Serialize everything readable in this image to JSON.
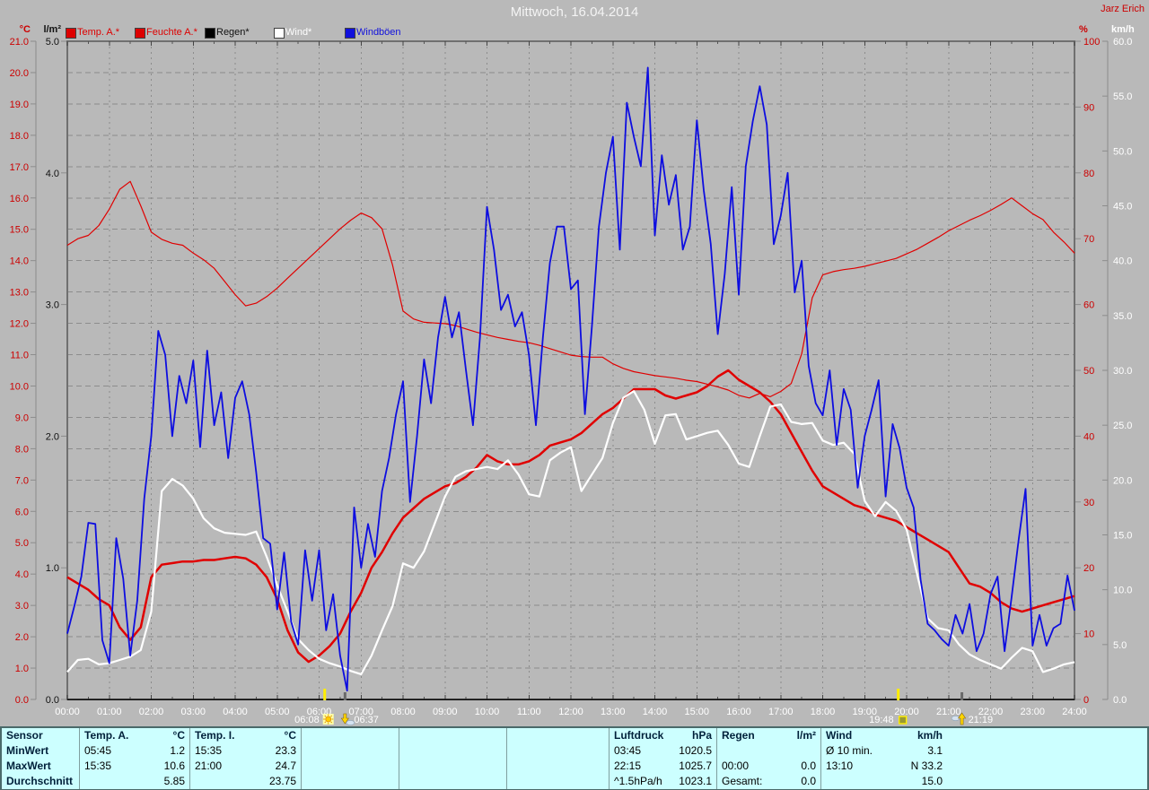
{
  "header": {
    "title": "Mittwoch, 16.04.2014",
    "watermark": "Jarz Erich"
  },
  "axis_units": {
    "temp": "°C",
    "rain": "l/m²",
    "humidity": "%",
    "wind": "km/h"
  },
  "legend": [
    {
      "label": "Temp. A.*",
      "color": "#dd0000"
    },
    {
      "label": "Feuchte A.*",
      "color": "#dd0000"
    },
    {
      "label": "Regen*",
      "color": "#000000"
    },
    {
      "label": "Wind*",
      "color": "#ffffff"
    },
    {
      "label": "Windböen",
      "color": "#1010dd"
    }
  ],
  "table": {
    "row_labels": [
      "Sensor",
      "MinWert",
      "MaxWert",
      "Durchschnitt"
    ],
    "columns": [
      {
        "id": "temp_a",
        "header": "Temp. A.",
        "unit": "°C",
        "rows": [
          [
            "05:45",
            "1.2"
          ],
          [
            "15:35",
            "10.6"
          ],
          [
            "",
            "5.85"
          ]
        ]
      },
      {
        "id": "temp_i",
        "header": "Temp. I.",
        "unit": "°C",
        "rows": [
          [
            "15:35",
            "23.3"
          ],
          [
            "21:00",
            "24.7"
          ],
          [
            "",
            "23.75"
          ]
        ]
      },
      {
        "id": "luftdruck",
        "header": "Luftdruck",
        "unit": "hPa",
        "rows": [
          [
            "03:45",
            "1020.5"
          ],
          [
            "22:15",
            "1025.7"
          ],
          [
            "^1.5hPa/h",
            "1023.1"
          ]
        ]
      },
      {
        "id": "regen",
        "header": "Regen",
        "unit": "l/m²",
        "rows": [
          [
            "",
            ""
          ],
          [
            "00:00",
            "0.0"
          ],
          [
            "Gesamt:",
            "0.0"
          ]
        ]
      },
      {
        "id": "wind",
        "header": "Wind",
        "unit": "km/h",
        "rows": [
          [
            "Ø 10 min.",
            "3.1"
          ],
          [
            "13:10",
            "N 33.2"
          ],
          [
            "",
            "15.0"
          ]
        ]
      }
    ]
  },
  "chart_data": {
    "type": "line",
    "title": "Mittwoch, 16.04.2014",
    "x_axis": {
      "min_hour": 0,
      "max_hour": 24,
      "step_hours": 1,
      "label_format": "HH:00"
    },
    "y_axes": [
      {
        "id": "temp",
        "unit": "°C",
        "min": 0,
        "max": 21,
        "step": 1,
        "side": "left",
        "color": "#cc0000",
        "decimals": 1
      },
      {
        "id": "rain",
        "unit": "l/m²",
        "min": 0,
        "max": 5,
        "step": 1,
        "side": "left",
        "color": "#111111",
        "decimals": 1
      },
      {
        "id": "hum",
        "unit": "%",
        "min": 0,
        "max": 100,
        "step": 10,
        "side": "right",
        "color": "#cc0000",
        "decimals": 0
      },
      {
        "id": "wind",
        "unit": "km/h",
        "min": 0,
        "max": 60,
        "step": 5,
        "side": "right",
        "color": "#ffffff",
        "decimals": 1
      }
    ],
    "grid": {
      "on": true,
      "color": "#8c8c8c"
    },
    "legend_position": "top",
    "series": [
      {
        "name": "Feuchte A.*",
        "axis": "hum",
        "color": "#e00000",
        "width": 1.2,
        "interval_min": 15,
        "values": [
          69,
          70,
          70.5,
          72,
          74.5,
          77.5,
          78.7,
          75,
          71,
          69.9,
          69.3,
          69,
          67.8,
          66.8,
          65.5,
          63.5,
          61.5,
          59.8,
          60.2,
          61.2,
          62.5,
          64,
          65.5,
          67,
          68.5,
          70,
          71.5,
          72.8,
          73.9,
          73.2,
          71.5,
          66,
          59,
          57.8,
          57.3,
          57.2,
          57.1,
          56.8,
          56.3,
          55.8,
          55.4,
          55,
          54.7,
          54.4,
          54.2,
          53.8,
          53.3,
          52.8,
          52.3,
          52.1,
          52,
          52,
          51,
          50.3,
          49.8,
          49.5,
          49.2,
          49,
          48.8,
          48.5,
          48.3,
          47.9,
          47.5,
          47,
          46.2,
          45.8,
          46.5,
          46,
          46.8,
          48,
          52.5,
          61,
          64.5,
          65,
          65.3,
          65.5,
          65.8,
          66.2,
          66.6,
          67,
          67.7,
          68.4,
          69.3,
          70.2,
          71.2,
          72,
          72.8,
          73.5,
          74.3,
          75.2,
          76.2,
          75,
          73.8,
          72.9,
          71,
          69.5,
          67.8
        ]
      },
      {
        "name": "Temp. A.*",
        "axis": "temp",
        "color": "#e00000",
        "width": 2.5,
        "interval_min": 15,
        "values": [
          3.9,
          3.7,
          3.5,
          3.2,
          3.0,
          2.3,
          1.9,
          2.3,
          3.9,
          4.3,
          4.35,
          4.4,
          4.4,
          4.45,
          4.45,
          4.5,
          4.55,
          4.5,
          4.3,
          3.9,
          3.2,
          2.2,
          1.5,
          1.2,
          1.4,
          1.7,
          2.1,
          2.8,
          3.4,
          4.2,
          4.7,
          5.3,
          5.8,
          6.1,
          6.4,
          6.6,
          6.8,
          6.9,
          7.1,
          7.4,
          7.8,
          7.6,
          7.5,
          7.5,
          7.6,
          7.8,
          8.1,
          8.2,
          8.3,
          8.5,
          8.8,
          9.1,
          9.3,
          9.6,
          9.9,
          9.9,
          9.9,
          9.7,
          9.6,
          9.7,
          9.8,
          10.0,
          10.3,
          10.5,
          10.2,
          10.0,
          9.8,
          9.5,
          9.1,
          8.5,
          7.9,
          7.3,
          6.8,
          6.6,
          6.4,
          6.2,
          6.1,
          5.9,
          5.8,
          5.7,
          5.5,
          5.3,
          5.1,
          4.9,
          4.7,
          4.2,
          3.7,
          3.6,
          3.4,
          3.1,
          2.9,
          2.8,
          2.9,
          3.0,
          3.1,
          3.2,
          3.3
        ]
      },
      {
        "name": "Regen*",
        "axis": "rain",
        "color": "#000000",
        "width": 1,
        "constant": 0.0
      },
      {
        "name": "Wind*",
        "axis": "wind",
        "color": "#ffffff",
        "width": 2.2,
        "interval_min": 15,
        "values": [
          2.5,
          3.6,
          3.7,
          3.2,
          3.3,
          3.6,
          3.9,
          4.5,
          8.0,
          19.0,
          20.1,
          19.5,
          18.3,
          16.5,
          15.6,
          15.2,
          15.1,
          15.0,
          15.3,
          13.0,
          10.4,
          8.0,
          5.5,
          4.5,
          3.7,
          3.3,
          3.0,
          2.6,
          2.3,
          4.0,
          6.3,
          8.5,
          12.4,
          12.0,
          13.5,
          16.0,
          18.5,
          20.3,
          20.8,
          21.0,
          21.2,
          21.0,
          21.8,
          20.5,
          18.7,
          18.5,
          21.8,
          22.5,
          23.0,
          19.0,
          20.5,
          22.0,
          25.2,
          27.5,
          28.1,
          26.4,
          23.3,
          25.9,
          26.0,
          23.7,
          24.0,
          24.3,
          24.5,
          23.2,
          21.5,
          21.2,
          24.0,
          26.7,
          26.9,
          25.3,
          25.1,
          25.2,
          23.6,
          23.2,
          23.4,
          22.4,
          18.1,
          16.7,
          18.0,
          17.2,
          15.5,
          11.4,
          7.4,
          6.5,
          6.3,
          5.0,
          4.1,
          3.6,
          3.2,
          2.8,
          3.8,
          4.7,
          4.4,
          2.5,
          2.8,
          3.2,
          3.4
        ]
      },
      {
        "name": "Windböen",
        "axis": "wind",
        "color": "#0d0de0",
        "width": 1.8,
        "interval_min": 10,
        "values": [
          6.0,
          8.5,
          11.2,
          16.1,
          16.0,
          5.4,
          3.3,
          14.7,
          11.0,
          4.0,
          9.0,
          18.3,
          24.0,
          33.6,
          31.4,
          24.0,
          29.5,
          27.0,
          30.9,
          23.0,
          31.8,
          25.0,
          28.0,
          22.0,
          27.5,
          29.0,
          26.0,
          20.7,
          14.7,
          14.2,
          8.2,
          13.4,
          7.1,
          5.0,
          13.6,
          9.0,
          13.6,
          6.3,
          9.6,
          4.0,
          0.8,
          17.5,
          12.0,
          16.0,
          13.0,
          19.0,
          22.0,
          26.0,
          29.0,
          18.0,
          24.0,
          31.0,
          27.0,
          33.0,
          36.7,
          33.0,
          35.3,
          30.0,
          25.0,
          33.0,
          44.9,
          41.0,
          35.5,
          36.9,
          34.0,
          35.3,
          31.4,
          25.0,
          33.0,
          39.8,
          43.1,
          43.1,
          37.4,
          38.2,
          26.0,
          34.0,
          43.1,
          48.0,
          51.3,
          41.0,
          54.4,
          51.3,
          48.6,
          57.6,
          42.3,
          49.6,
          45.1,
          47.8,
          41.0,
          43.1,
          52.8,
          46.4,
          41.5,
          33.3,
          38.8,
          46.7,
          36.9,
          48.6,
          52.7,
          55.9,
          52.4,
          41.5,
          44.1,
          48.0,
          37.1,
          40.0,
          30.4,
          27.0,
          25.9,
          30.0,
          23.2,
          28.3,
          26.4,
          19.3,
          24.0,
          26.4,
          29.1,
          18.5,
          25.1,
          22.9,
          19.3,
          17.5,
          10.9,
          6.9,
          6.3,
          5.5,
          4.9,
          7.7,
          6.0,
          8.7,
          4.4,
          6.0,
          9.6,
          11.2,
          4.4,
          9.3,
          14.5,
          19.2,
          4.9,
          7.7,
          4.9,
          6.5,
          6.9,
          11.3,
          8.1
        ]
      }
    ],
    "sun_markers": [
      {
        "time": "06:08",
        "hours": 6.133,
        "type": "sunrise",
        "tick": "#ffee00"
      },
      {
        "time": "06:37",
        "hours": 6.617,
        "type": "moonset",
        "tick": "#6a6a6a"
      },
      {
        "time": "19:48",
        "hours": 19.8,
        "type": "sunset",
        "tick": "#ffee00"
      },
      {
        "time": "21:19",
        "hours": 21.317,
        "type": "moonrise",
        "tick": "#6a6a6a"
      }
    ]
  }
}
